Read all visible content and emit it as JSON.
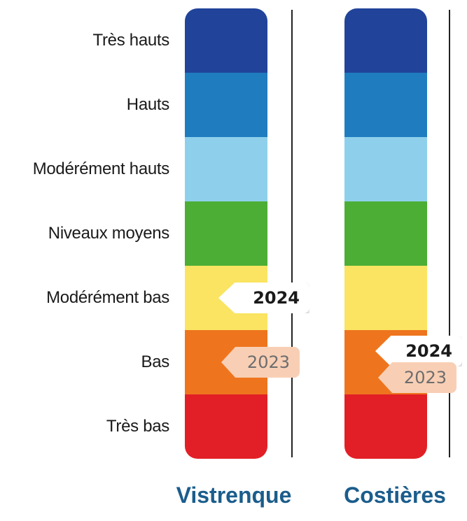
{
  "chart_data": {
    "type": "table",
    "levels": [
      "Très hauts",
      "Hauts",
      "Modérément hauts",
      "Niveaux moyens",
      "Modérément bas",
      "Bas",
      "Très bas"
    ],
    "level_colors": [
      "#21449a",
      "#1f7dbf",
      "#8ed0ec",
      "#4cae35",
      "#fae462",
      "#ee751e",
      "#e21f26"
    ],
    "aquifers": [
      {
        "name": "Vistrenque",
        "markers": [
          {
            "year": "2024",
            "level": "Modérément bas"
          },
          {
            "year": "2023",
            "level": "Bas"
          }
        ]
      },
      {
        "name": "Costières",
        "markers": [
          {
            "year": "2024",
            "level": "Bas"
          },
          {
            "year": "2023",
            "level": "Bas"
          }
        ]
      }
    ],
    "colors": {
      "title": "#1b5d8c",
      "marker_current": "#ffffff",
      "marker_previous": "#f8cfb5"
    }
  }
}
